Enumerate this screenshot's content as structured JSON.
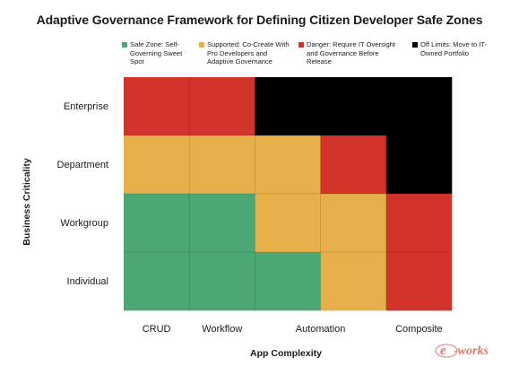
{
  "chart_data": {
    "type": "heatmap",
    "title": "Adaptive Governance Framework for Defining Citizen Developer Safe Zones",
    "xlabel": "App Complexity",
    "ylabel": "Business Criticality",
    "x_ticks": [
      "CRUD",
      "Workflow",
      "Automation",
      "Composite"
    ],
    "y_ticks": [
      "Enterprise",
      "Department",
      "Workgroup",
      "Individual"
    ],
    "legend": [
      {
        "key": "safe",
        "label": "Safe Zone: Self-Governing Sweet Spot",
        "color": "#4ba874"
      },
      {
        "key": "supported",
        "label": "Supported: Co-Create With Pro Developers and Adaptive Governance",
        "color": "#e7b04a"
      },
      {
        "key": "danger",
        "label": "Danger: Require IT Oversight and Governance Before Release",
        "color": "#d2332a"
      },
      {
        "key": "off",
        "label": "Off Limits: Move to IT-Owned Portfolio",
        "color": "#000000"
      }
    ],
    "grid_columns": 5,
    "grid_rows": 4,
    "cells": [
      [
        "danger",
        "danger",
        "off",
        "off",
        "off"
      ],
      [
        "supported",
        "supported",
        "supported",
        "danger",
        "off"
      ],
      [
        "safe",
        "safe",
        "supported",
        "supported",
        "danger"
      ],
      [
        "safe",
        "safe",
        "safe",
        "supported",
        "danger"
      ]
    ],
    "gridlines": true
  },
  "watermark": {
    "text": "e-works"
  }
}
